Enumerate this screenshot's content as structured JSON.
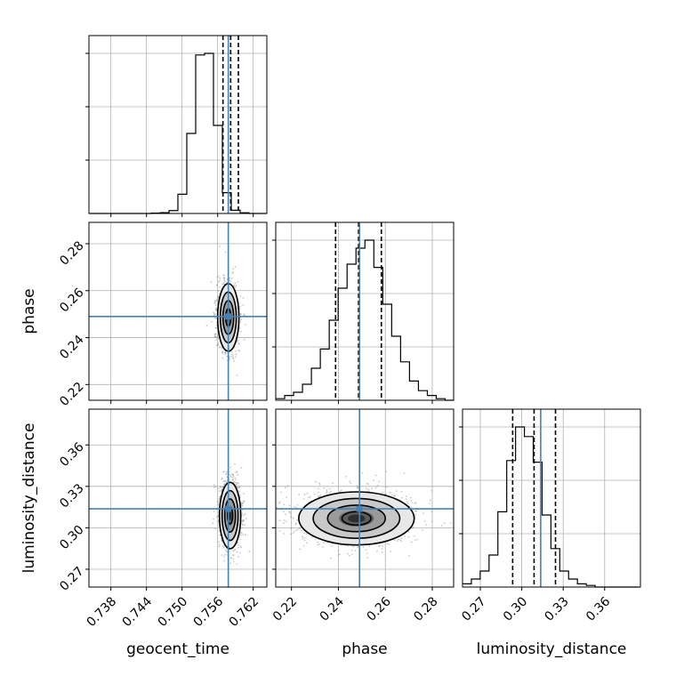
{
  "chart_data": {
    "type": "corner",
    "parameters": [
      {
        "name": "geocent_time",
        "label": "geocent_time",
        "range": [
          0.7343,
          0.7643
        ],
        "ticks": [
          0.738,
          0.744,
          0.75,
          0.756,
          0.762
        ],
        "tick_labels": [
          "0.738",
          "0.744",
          "0.750",
          "0.756",
          "0.762"
        ],
        "truth": 0.7578,
        "quantiles": [
          0.7569,
          0.7582,
          0.7595
        ],
        "histogram": {
          "edges_start": 0.7343,
          "bin_width": 0.0015,
          "counts": [
            0,
            0,
            0,
            0,
            0,
            0,
            0,
            0.002,
            0.005,
            0.018,
            0.12,
            0.5,
            0.99,
            1.0,
            0.55,
            0.13,
            0.02,
            0.004,
            0,
            0
          ]
        }
      },
      {
        "name": "phase",
        "label": "phase",
        "range": [
          0.2133,
          0.2891
        ],
        "ticks": [
          0.22,
          0.24,
          0.26,
          0.28
        ],
        "tick_labels": [
          "0.22",
          "0.24",
          "0.26",
          "0.28"
        ],
        "truth": 0.249,
        "quantiles": [
          0.2388,
          0.2486,
          0.2583
        ],
        "histogram": {
          "edges_start": 0.2133,
          "bin_width": 0.0038,
          "counts": [
            0.01,
            0.03,
            0.05,
            0.1,
            0.2,
            0.32,
            0.5,
            0.7,
            0.85,
            0.95,
            1.0,
            0.83,
            0.6,
            0.4,
            0.24,
            0.12,
            0.06,
            0.03,
            0.01,
            0
          ]
        }
      },
      {
        "name": "luminosity_distance",
        "label": "luminosity_distance",
        "range": [
          0.2571,
          0.3859
        ],
        "ticks": [
          0.27,
          0.3,
          0.33,
          0.36
        ],
        "tick_labels": [
          "0.27",
          "0.30",
          "0.33",
          "0.36"
        ],
        "truth": 0.3137,
        "quantiles": [
          0.2934,
          0.3089,
          0.3244
        ],
        "histogram": {
          "edges_start": 0.2571,
          "bin_width": 0.0064,
          "counts": [
            0.02,
            0.05,
            0.1,
            0.2,
            0.47,
            0.79,
            1.0,
            0.94,
            0.78,
            0.45,
            0.24,
            0.1,
            0.05,
            0.02,
            0.01,
            0,
            0,
            0,
            0,
            0
          ]
        }
      }
    ],
    "scatter_panels": [
      {
        "x": "geocent_time",
        "y": "phase",
        "center": [
          0.7578,
          0.2486
        ],
        "sigma": [
          0.0009,
          0.0072
        ],
        "contour_sigma_levels": [
          0.5,
          1.0,
          1.5,
          2.0
        ]
      },
      {
        "x": "geocent_time",
        "y": "luminosity_distance",
        "center": [
          0.7581,
          0.3089
        ],
        "sigma": [
          0.0009,
          0.012
        ],
        "contour_sigma_levels": [
          0.5,
          1.0,
          1.5,
          2.0
        ]
      },
      {
        "x": "phase",
        "y": "luminosity_distance",
        "center": [
          0.2477,
          0.3068
        ],
        "sigma": [
          0.0123,
          0.0096
        ],
        "contour_sigma_levels": [
          0.5,
          1.0,
          1.5,
          2.0
        ]
      }
    ],
    "grid": true,
    "truth_color": "#4682b4",
    "quantile_line_color": "#000000",
    "histogram_color": "#000000",
    "scatter_color": "#888888",
    "contour_color": "#000000"
  }
}
